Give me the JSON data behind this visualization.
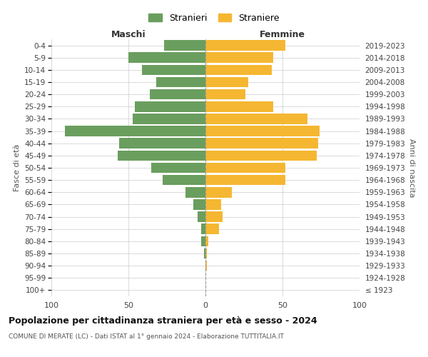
{
  "age_groups": [
    "100+",
    "95-99",
    "90-94",
    "85-89",
    "80-84",
    "75-79",
    "70-74",
    "65-69",
    "60-64",
    "55-59",
    "50-54",
    "45-49",
    "40-44",
    "35-39",
    "30-34",
    "25-29",
    "20-24",
    "15-19",
    "10-14",
    "5-9",
    "0-4"
  ],
  "birth_years": [
    "≤ 1923",
    "1924-1928",
    "1929-1933",
    "1934-1938",
    "1939-1943",
    "1944-1948",
    "1949-1953",
    "1954-1958",
    "1959-1963",
    "1964-1968",
    "1969-1973",
    "1974-1978",
    "1979-1983",
    "1984-1988",
    "1989-1993",
    "1994-1998",
    "1999-2003",
    "2004-2008",
    "2009-2013",
    "2014-2018",
    "2019-2023"
  ],
  "maschi": [
    0,
    0,
    0,
    1,
    3,
    3,
    5,
    8,
    13,
    28,
    35,
    57,
    56,
    91,
    47,
    46,
    36,
    32,
    41,
    50,
    27
  ],
  "femmine": [
    0,
    0,
    1,
    1,
    2,
    9,
    11,
    10,
    17,
    52,
    52,
    72,
    73,
    74,
    66,
    44,
    26,
    28,
    43,
    44,
    52
  ],
  "maschi_color": "#6a9e5e",
  "femmine_color": "#f5b731",
  "bar_height": 0.85,
  "xlim": 100,
  "title": "Popolazione per cittadinanza straniera per età e sesso - 2024",
  "subtitle": "COMUNE DI MERATE (LC) - Dati ISTAT al 1° gennaio 2024 - Elaborazione TUTTITALIA.IT",
  "xlabel_left": "Maschi",
  "xlabel_right": "Femmine",
  "ylabel_left": "Fasce di età",
  "ylabel_right": "Anni di nascita",
  "legend_maschi": "Stranieri",
  "legend_femmine": "Straniere",
  "bg_color": "#ffffff",
  "grid_color": "#cccccc"
}
